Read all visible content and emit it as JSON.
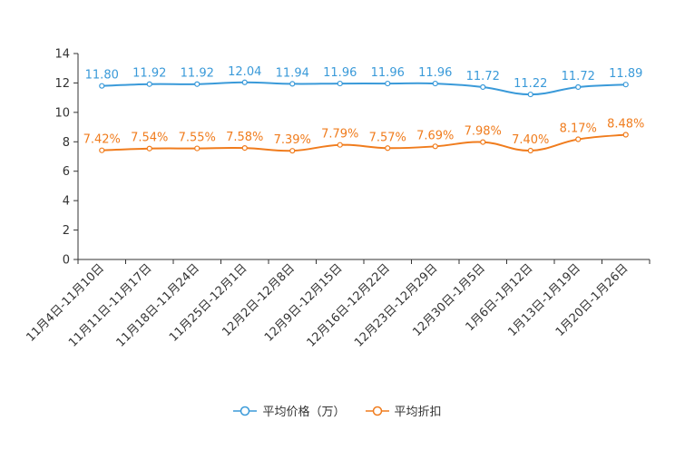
{
  "chart_data": {
    "type": "line",
    "categories": [
      "11月4日-11月10日",
      "11月11日-11月17日",
      "11月18日-11月24日",
      "11月25日-12月1日",
      "12月2日-12月8日",
      "12月9日-12月15日",
      "12月16日-12月22日",
      "12月23日-12月29日",
      "12月30日-1月5日",
      "1月6日-1月12日",
      "1月13日-1月19日",
      "1月20日-1月26日"
    ],
    "ylim": [
      0,
      14
    ],
    "yticks": [
      0,
      2,
      4,
      6,
      8,
      10,
      12,
      14
    ],
    "series": [
      {
        "name": "平均价格（万）",
        "color": "#3a9ad9",
        "values": [
          11.8,
          11.92,
          11.92,
          12.04,
          11.94,
          11.96,
          11.96,
          11.96,
          11.72,
          11.22,
          11.72,
          11.89
        ],
        "labels": [
          "11.80",
          "11.92",
          "11.92",
          "12.04",
          "11.94",
          "11.96",
          "11.96",
          "11.96",
          "11.72",
          "11.22",
          "11.72",
          "11.89"
        ]
      },
      {
        "name": "平均折扣",
        "color": "#f07c1d",
        "values": [
          7.42,
          7.54,
          7.55,
          7.58,
          7.39,
          7.79,
          7.57,
          7.69,
          7.98,
          7.4,
          8.17,
          8.48
        ],
        "labels": [
          "7.42%",
          "7.54%",
          "7.55%",
          "7.58%",
          "7.39%",
          "7.79%",
          "7.57%",
          "7.69%",
          "7.98%",
          "7.40%",
          "8.17%",
          "8.48%"
        ]
      }
    ]
  }
}
